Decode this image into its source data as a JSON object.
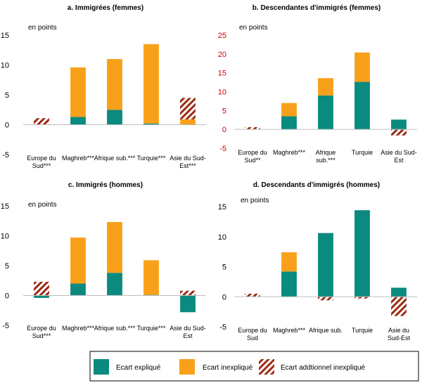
{
  "legend": {
    "items": [
      {
        "label": "Ecart expliqué",
        "color": "#0b8a80",
        "pattern": false
      },
      {
        "label": "Ecart inexpliqué",
        "color": "#f9a01b",
        "pattern": false
      },
      {
        "label": "Ecart addtionnel inexpliqué",
        "color": "#9c2a12",
        "pattern": true
      }
    ]
  },
  "chart_data": [
    {
      "type": "bar",
      "stacked": true,
      "title": "a. Immigrées (femmes)",
      "ylabel": "en points",
      "ylim": [
        -5,
        15
      ],
      "yticks": [
        -5,
        0,
        5,
        10,
        15
      ],
      "tick_color": "#000000",
      "categories": [
        [
          "Europe du",
          "Sud***"
        ],
        [
          "Maghreb***"
        ],
        [
          "Afrique sub.***"
        ],
        [
          "Turquie***"
        ],
        [
          "Asie du Sud-",
          "Est***"
        ]
      ],
      "series": [
        {
          "name": "Ecart expliqué",
          "values": [
            0.0,
            1.3,
            2.5,
            0.2,
            0.0
          ]
        },
        {
          "name": "Ecart inexpliqué",
          "values": [
            0.0,
            8.3,
            8.5,
            13.3,
            0.9
          ]
        },
        {
          "name": "Ecart addtionnel inexpliqué",
          "values": [
            1.1,
            0.0,
            0.0,
            0.0,
            3.6
          ]
        }
      ]
    },
    {
      "type": "bar",
      "stacked": true,
      "title": "b. Descendantes d'immigrés (femmes)",
      "ylabel": "en points",
      "ylim": [
        -5,
        25
      ],
      "yticks": [
        -5,
        0,
        5,
        10,
        15,
        20,
        25
      ],
      "tick_color": "#cc0000",
      "categories": [
        [
          "Europe du",
          "Sud**"
        ],
        [
          "Maghreb***"
        ],
        [
          "Afrique",
          "sub.***"
        ],
        [
          "Turquie"
        ],
        [
          "Asie du Sud-",
          "Est"
        ]
      ],
      "series": [
        {
          "name": "Ecart expliqué",
          "values": [
            0.0,
            3.5,
            9.0,
            12.6,
            2.6
          ]
        },
        {
          "name": "Ecart inexpliqué",
          "values": [
            0.0,
            3.5,
            4.6,
            7.8,
            0.0
          ]
        },
        {
          "name": "Ecart addtionnel inexpliqué",
          "values": [
            0.6,
            0.0,
            0.0,
            0.0,
            -1.6
          ]
        }
      ]
    },
    {
      "type": "bar",
      "stacked": true,
      "title": "c. Immigrés (hommes)",
      "ylabel": "en points",
      "ylim": [
        -5,
        15
      ],
      "yticks": [
        -5,
        0,
        5,
        10,
        15
      ],
      "tick_color": "#000000",
      "categories": [
        [
          "Europe du",
          "Sud***"
        ],
        [
          "Maghreb***"
        ],
        [
          "Afrique sub.***"
        ],
        [
          "Turquie***"
        ],
        [
          "Asie du Sud-",
          "Est"
        ]
      ],
      "series": [
        {
          "name": "Ecart expliqué",
          "values": [
            -0.4,
            2.0,
            3.8,
            0.1,
            -2.8
          ]
        },
        {
          "name": "Ecart inexpliqué",
          "values": [
            0.0,
            7.7,
            8.5,
            5.8,
            0.0
          ]
        },
        {
          "name": "Ecart addtionnel inexpliqué",
          "values": [
            2.3,
            0.0,
            0.0,
            0.0,
            0.8
          ]
        }
      ]
    },
    {
      "type": "bar",
      "stacked": true,
      "title": "d. Descendants d'immigrés (hommes)",
      "ylabel": "en points",
      "ylim": [
        -5,
        15
      ],
      "yticks": [
        -5,
        0,
        5,
        10,
        15
      ],
      "tick_color": "#000000",
      "categories": [
        [
          "Europe du",
          "Sud"
        ],
        [
          "Maghreb***"
        ],
        [
          "Afrique sub."
        ],
        [
          "Turquie"
        ],
        [
          "Asie du",
          "Sud-Est"
        ]
      ],
      "series": [
        {
          "name": "Ecart expliqué",
          "values": [
            0.0,
            4.2,
            10.6,
            14.4,
            1.5
          ]
        },
        {
          "name": "Ecart inexpliqué",
          "values": [
            0.0,
            3.2,
            0.0,
            0.0,
            0.0
          ]
        },
        {
          "name": "Ecart addtionnel inexpliqué",
          "values": [
            0.5,
            0.0,
            -0.6,
            -0.3,
            -3.2
          ]
        }
      ]
    }
  ]
}
